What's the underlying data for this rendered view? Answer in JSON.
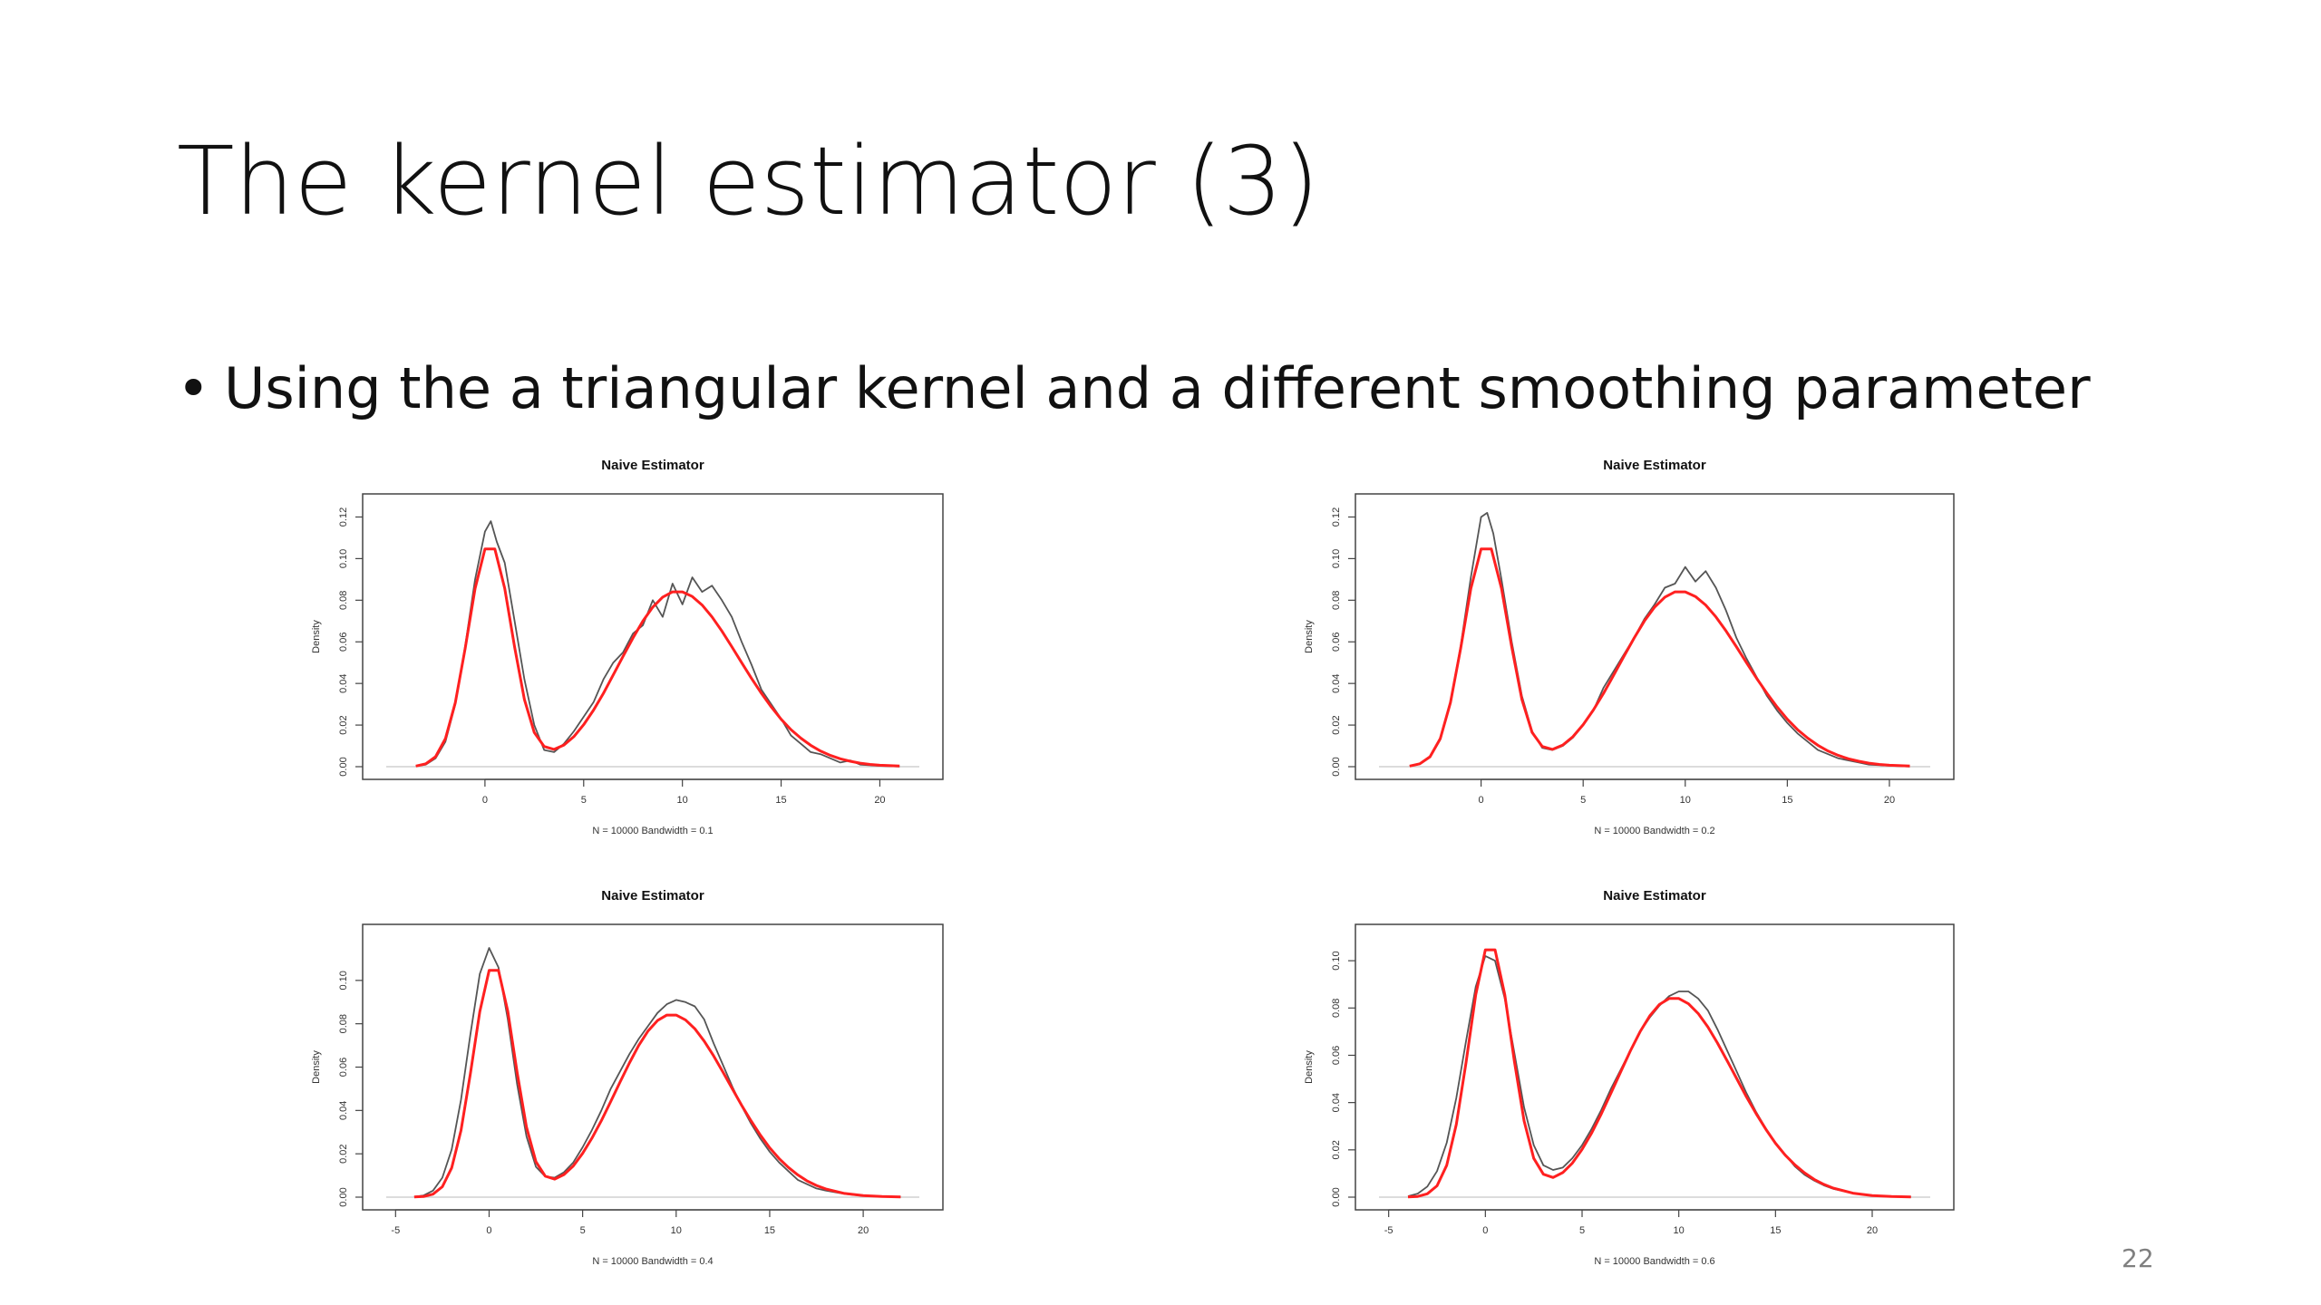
{
  "slide": {
    "title": "The kernel estimator (3)",
    "bullet": "Using the a triangular kernel and a different smoothing parameter",
    "page_number": "22"
  },
  "colors": {
    "estimate": "#555555",
    "true_density": "#ff2020",
    "axis": "#444444"
  },
  "chart_data": [
    {
      "type": "line",
      "title": "Naive Estimator",
      "ylabel": "Density",
      "xlabel": "N = 10000   Bandwidth = 0.1",
      "xticks": [
        0,
        5,
        10,
        15,
        20
      ],
      "yticks": [
        "0.00",
        "0.02",
        "0.04",
        "0.06",
        "0.08",
        "0.10",
        "0.12"
      ],
      "xlim": [
        -5,
        22
      ],
      "ylim": [
        0,
        0.125
      ],
      "series": [
        {
          "style": "estimate",
          "x": [
            -3.5,
            -3,
            -2.5,
            -2,
            -1.5,
            -1,
            -0.5,
            0,
            0.3,
            0.6,
            1,
            1.5,
            2,
            2.5,
            3,
            3.5,
            4,
            4.5,
            5,
            5.5,
            6,
            6.5,
            7,
            7.5,
            8,
            8.5,
            9,
            9.5,
            10,
            10.5,
            11,
            11.5,
            12,
            12.5,
            13,
            13.5,
            14,
            14.5,
            15,
            15.5,
            16,
            16.5,
            17,
            17.5,
            18,
            18.5,
            19,
            20,
            21
          ],
          "y": [
            0.0003,
            0.001,
            0.004,
            0.012,
            0.03,
            0.058,
            0.09,
            0.113,
            0.118,
            0.108,
            0.098,
            0.07,
            0.042,
            0.02,
            0.008,
            0.007,
            0.011,
            0.017,
            0.024,
            0.031,
            0.042,
            0.05,
            0.055,
            0.064,
            0.068,
            0.08,
            0.072,
            0.088,
            0.078,
            0.091,
            0.084,
            0.087,
            0.08,
            0.072,
            0.06,
            0.049,
            0.037,
            0.03,
            0.023,
            0.015,
            0.011,
            0.007,
            0.006,
            0.004,
            0.002,
            0.003,
            0.001,
            0.0004,
            0.0001
          ]
        },
        {
          "style": "true",
          "x": [
            -3.5,
            -3,
            -2.5,
            -2,
            -1.5,
            -1,
            -0.5,
            0,
            0.5,
            1,
            1.5,
            2,
            2.5,
            3,
            3.5,
            4,
            4.5,
            5,
            5.5,
            6,
            6.5,
            7,
            7.5,
            8,
            8.5,
            9,
            9.5,
            10,
            10.5,
            11,
            11.5,
            12,
            12.5,
            13,
            13.5,
            14,
            14.5,
            15,
            15.5,
            16,
            16.5,
            17,
            17.5,
            18,
            18.5,
            19,
            19.5,
            20,
            21
          ],
          "y": [
            0.0003,
            0.0014,
            0.0048,
            0.0135,
            0.0308,
            0.0569,
            0.0856,
            0.1046,
            0.1046,
            0.0857,
            0.0575,
            0.0323,
            0.0164,
            0.0097,
            0.0083,
            0.0104,
            0.0144,
            0.0202,
            0.0272,
            0.0353,
            0.0441,
            0.0531,
            0.0619,
            0.07,
            0.0767,
            0.0815,
            0.084,
            0.084,
            0.0818,
            0.0777,
            0.072,
            0.0652,
            0.0577,
            0.05,
            0.0424,
            0.0353,
            0.0287,
            0.0228,
            0.0178,
            0.0137,
            0.0103,
            0.0075,
            0.0054,
            0.0038,
            0.0026,
            0.0017,
            0.0011,
            0.0007,
            0.0003
          ]
        }
      ]
    },
    {
      "type": "line",
      "title": "Naive Estimator",
      "ylabel": "Density",
      "xlabel": "N = 10000   Bandwidth = 0.2",
      "xticks": [
        0,
        5,
        10,
        15,
        20
      ],
      "yticks": [
        "0.00",
        "0.02",
        "0.04",
        "0.06",
        "0.08",
        "0.10",
        "0.12"
      ],
      "xlim": [
        -5,
        22
      ],
      "ylim": [
        0,
        0.125
      ],
      "series": [
        {
          "style": "estimate",
          "x": [
            -3.5,
            -3,
            -2.5,
            -2,
            -1.5,
            -1,
            -0.5,
            0,
            0.3,
            0.6,
            1,
            1.5,
            2,
            2.5,
            3,
            3.5,
            4,
            4.5,
            5,
            5.5,
            6,
            6.5,
            7,
            7.5,
            8,
            8.5,
            9,
            9.5,
            10,
            10.5,
            11,
            11.5,
            12,
            12.5,
            13,
            13.5,
            14,
            14.5,
            15,
            15.5,
            16,
            16.5,
            17,
            17.5,
            18,
            18.5,
            19,
            20,
            21
          ],
          "y": [
            0.0003,
            0.0012,
            0.0045,
            0.013,
            0.031,
            0.058,
            0.091,
            0.12,
            0.122,
            0.112,
            0.09,
            0.06,
            0.034,
            0.017,
            0.009,
            0.008,
            0.01,
            0.014,
            0.02,
            0.027,
            0.038,
            0.046,
            0.054,
            0.062,
            0.071,
            0.078,
            0.086,
            0.088,
            0.096,
            0.089,
            0.094,
            0.086,
            0.075,
            0.062,
            0.052,
            0.043,
            0.034,
            0.027,
            0.021,
            0.016,
            0.012,
            0.008,
            0.006,
            0.004,
            0.003,
            0.002,
            0.001,
            0.0005,
            0.0001
          ]
        },
        {
          "style": "true",
          "x": [
            -3.5,
            -3,
            -2.5,
            -2,
            -1.5,
            -1,
            -0.5,
            0,
            0.5,
            1,
            1.5,
            2,
            2.5,
            3,
            3.5,
            4,
            4.5,
            5,
            5.5,
            6,
            6.5,
            7,
            7.5,
            8,
            8.5,
            9,
            9.5,
            10,
            10.5,
            11,
            11.5,
            12,
            12.5,
            13,
            13.5,
            14,
            14.5,
            15,
            15.5,
            16,
            16.5,
            17,
            17.5,
            18,
            18.5,
            19,
            19.5,
            20,
            21
          ],
          "y": [
            0.0003,
            0.0014,
            0.0048,
            0.0135,
            0.0308,
            0.0569,
            0.0856,
            0.1046,
            0.1046,
            0.0857,
            0.0575,
            0.0323,
            0.0164,
            0.0097,
            0.0083,
            0.0104,
            0.0144,
            0.0202,
            0.0272,
            0.0353,
            0.0441,
            0.0531,
            0.0619,
            0.07,
            0.0767,
            0.0815,
            0.084,
            0.084,
            0.0818,
            0.0777,
            0.072,
            0.0652,
            0.0577,
            0.05,
            0.0424,
            0.0353,
            0.0287,
            0.0228,
            0.0178,
            0.0137,
            0.0103,
            0.0075,
            0.0054,
            0.0038,
            0.0026,
            0.0017,
            0.0011,
            0.0007,
            0.0003
          ]
        }
      ]
    },
    {
      "type": "line",
      "title": "Naive Estimator",
      "ylabel": "Density",
      "xlabel": "N = 10000   Bandwidth = 0.4",
      "xticks": [
        -5,
        0,
        5,
        10,
        15,
        20
      ],
      "yticks": [
        "0.00",
        "0.02",
        "0.04",
        "0.06",
        "0.08",
        "0.10"
      ],
      "xlim": [
        -5.5,
        23
      ],
      "ylim": [
        0,
        0.12
      ],
      "series": [
        {
          "style": "estimate",
          "x": [
            -4,
            -3.5,
            -3,
            -2.5,
            -2,
            -1.5,
            -1,
            -0.5,
            0,
            0.5,
            1,
            1.5,
            2,
            2.5,
            3,
            3.5,
            4,
            4.5,
            5,
            5.5,
            6,
            6.5,
            7,
            7.5,
            8,
            8.5,
            9,
            9.5,
            10,
            10.5,
            11,
            11.5,
            12,
            12.5,
            13,
            13.5,
            14,
            14.5,
            15,
            15.5,
            16,
            16.5,
            17,
            17.5,
            18,
            19,
            20,
            21,
            22
          ],
          "y": [
            0.0002,
            0.0008,
            0.003,
            0.009,
            0.022,
            0.045,
            0.075,
            0.103,
            0.115,
            0.106,
            0.082,
            0.052,
            0.028,
            0.014,
            0.0095,
            0.009,
            0.0115,
            0.016,
            0.023,
            0.031,
            0.04,
            0.05,
            0.058,
            0.066,
            0.073,
            0.079,
            0.085,
            0.089,
            0.091,
            0.09,
            0.088,
            0.082,
            0.071,
            0.061,
            0.051,
            0.042,
            0.034,
            0.027,
            0.021,
            0.016,
            0.012,
            0.008,
            0.006,
            0.004,
            0.003,
            0.0015,
            0.0006,
            0.0002,
            0.0001
          ]
        },
        {
          "style": "true",
          "x": [
            -4,
            -3.5,
            -3,
            -2.5,
            -2,
            -1.5,
            -1,
            -0.5,
            0,
            0.5,
            1,
            1.5,
            2,
            2.5,
            3,
            3.5,
            4,
            4.5,
            5,
            5.5,
            6,
            6.5,
            7,
            7.5,
            8,
            8.5,
            9,
            9.5,
            10,
            10.5,
            11,
            11.5,
            12,
            12.5,
            13,
            13.5,
            14,
            14.5,
            15,
            15.5,
            16,
            16.5,
            17,
            17.5,
            18,
            19,
            20,
            21,
            22
          ],
          "y": [
            0.0001,
            0.0003,
            0.0014,
            0.0048,
            0.0135,
            0.0308,
            0.0569,
            0.0856,
            0.1046,
            0.1046,
            0.0857,
            0.0575,
            0.0323,
            0.0164,
            0.0097,
            0.0083,
            0.0104,
            0.0144,
            0.0202,
            0.0272,
            0.0353,
            0.0441,
            0.0531,
            0.0619,
            0.07,
            0.0767,
            0.0815,
            0.084,
            0.084,
            0.0818,
            0.0777,
            0.072,
            0.0652,
            0.0577,
            0.05,
            0.0424,
            0.0353,
            0.0287,
            0.0228,
            0.0178,
            0.0137,
            0.0103,
            0.0075,
            0.0054,
            0.0038,
            0.0017,
            0.0007,
            0.0003,
            0.0001
          ]
        }
      ]
    },
    {
      "type": "line",
      "title": "Naive Estimator",
      "ylabel": "Density",
      "xlabel": "N = 10000   Bandwidth = 0.6",
      "xticks": [
        -5,
        0,
        5,
        10,
        15,
        20
      ],
      "yticks": [
        "0.00",
        "0.02",
        "0.04",
        "0.06",
        "0.08",
        "0.10"
      ],
      "xlim": [
        -5.5,
        23
      ],
      "ylim": [
        0,
        0.11
      ],
      "series": [
        {
          "style": "estimate",
          "x": [
            -4,
            -3.5,
            -3,
            -2.5,
            -2,
            -1.5,
            -1,
            -0.5,
            0,
            0.5,
            1,
            1.5,
            2,
            2.5,
            3,
            3.5,
            4,
            4.5,
            5,
            5.5,
            6,
            6.5,
            7,
            7.5,
            8,
            8.5,
            9,
            9.5,
            10,
            10.5,
            11,
            11.5,
            12,
            12.5,
            13,
            13.5,
            14,
            14.5,
            15,
            15.5,
            16,
            16.5,
            17,
            17.5,
            18,
            19,
            20,
            21,
            22
          ],
          "y": [
            0.0004,
            0.0015,
            0.0045,
            0.011,
            0.023,
            0.042,
            0.066,
            0.089,
            0.102,
            0.1,
            0.084,
            0.061,
            0.038,
            0.022,
            0.0135,
            0.0115,
            0.0125,
            0.0165,
            0.022,
            0.029,
            0.037,
            0.046,
            0.054,
            0.062,
            0.07,
            0.076,
            0.081,
            0.085,
            0.087,
            0.087,
            0.084,
            0.079,
            0.071,
            0.062,
            0.053,
            0.044,
            0.036,
            0.029,
            0.023,
            0.018,
            0.013,
            0.0095,
            0.007,
            0.005,
            0.0035,
            0.0016,
            0.0007,
            0.0003,
            0.0001
          ]
        },
        {
          "style": "true",
          "x": [
            -4,
            -3.5,
            -3,
            -2.5,
            -2,
            -1.5,
            -1,
            -0.5,
            0,
            0.5,
            1,
            1.5,
            2,
            2.5,
            3,
            3.5,
            4,
            4.5,
            5,
            5.5,
            6,
            6.5,
            7,
            7.5,
            8,
            8.5,
            9,
            9.5,
            10,
            10.5,
            11,
            11.5,
            12,
            12.5,
            13,
            13.5,
            14,
            14.5,
            15,
            15.5,
            16,
            16.5,
            17,
            17.5,
            18,
            19,
            20,
            21,
            22
          ],
          "y": [
            0.0001,
            0.0003,
            0.0014,
            0.0048,
            0.0135,
            0.0308,
            0.0569,
            0.0856,
            0.1046,
            0.1046,
            0.0857,
            0.0575,
            0.0323,
            0.0164,
            0.0097,
            0.0083,
            0.0104,
            0.0144,
            0.0202,
            0.0272,
            0.0353,
            0.0441,
            0.0531,
            0.0619,
            0.07,
            0.0767,
            0.0815,
            0.084,
            0.084,
            0.0818,
            0.0777,
            0.072,
            0.0652,
            0.0577,
            0.05,
            0.0424,
            0.0353,
            0.0287,
            0.0228,
            0.0178,
            0.0137,
            0.0103,
            0.0075,
            0.0054,
            0.0038,
            0.0017,
            0.0007,
            0.0003,
            0.0001
          ]
        }
      ]
    }
  ]
}
